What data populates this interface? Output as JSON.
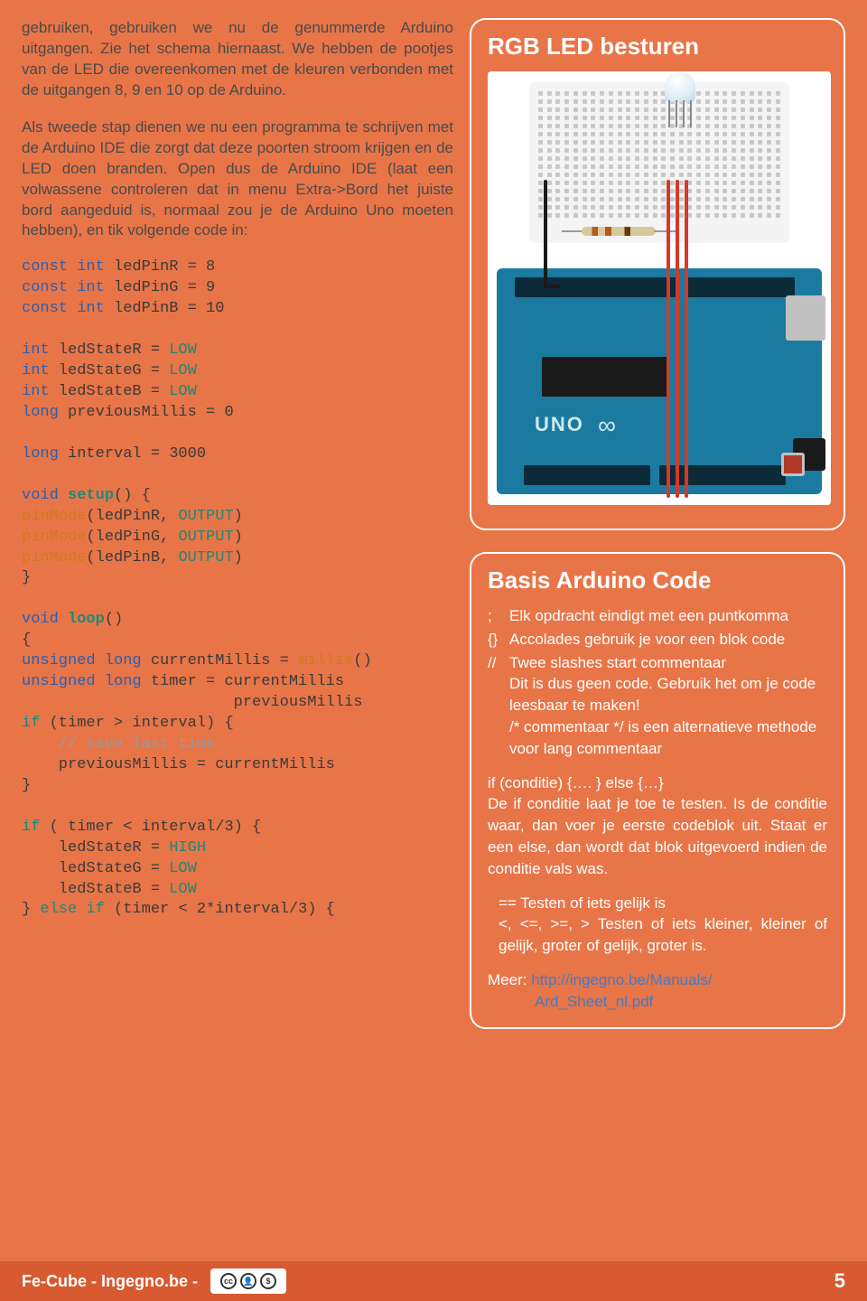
{
  "para1": "gebruiken, gebruiken we nu de genummerde Arduino uitgangen. Zie het schema hiernaast. We hebben de pootjes van de LED die overeenkomen met de kleuren verbonden met de uitgangen 8, 9 en 10 op de Arduino.",
  "para2": "Als tweede stap dienen we nu een programma te schrijven met de Arduino IDE die zorgt dat deze poorten stroom krijgen en de LED doen branden. Open dus de Arduino IDE (laat een volwassene controleren dat in menu Extra->Bord het juiste bord aangeduid is, normaal zou je de Arduino Uno moeten hebben), en tik volgende code in:",
  "code": {
    "c1a": "const int",
    "c1b": " ledPinR =  8",
    "c2a": "const int",
    "c2b": " ledPinG =  9",
    "c3a": "const int",
    "c3b": " ledPinB = 10",
    "c4a": "int",
    "c4b": " ledStateR = ",
    "c4c": "LOW",
    "c5a": "int",
    "c5b": " ledStateG = ",
    "c5c": "LOW",
    "c6a": "int",
    "c6b": " ledStateB = ",
    "c6c": "LOW",
    "c7a": "long",
    "c7b": " previousMillis = 0",
    "c8a": "long",
    "c8b": " interval = 3000",
    "c9a": "void ",
    "c9b": "setup",
    "c9c": "() {",
    "c10a": "  pinMode",
    "c10b": "(ledPinR, ",
    "c10c": "OUTPUT",
    "c10d": ")",
    "c11a": "  pinMode",
    "c11b": "(ledPinG, ",
    "c11c": "OUTPUT",
    "c11d": ")",
    "c12a": "  pinMode",
    "c12b": "(ledPinB, ",
    "c12c": "OUTPUT",
    "c12d": ")",
    "c13": "}",
    "c14a": "void ",
    "c14b": "loop",
    "c14c": "()",
    "c15": "{",
    "c16a": "  unsigned long ",
    "c16b": "currentMillis = ",
    "c16c": "millis",
    "c16d": "()",
    "c17a": "  unsigned long ",
    "c17b": "timer = currentMillis",
    "c17c": "                       previousMillis",
    "c18a": "  if ",
    "c18b": "(timer > interval) {",
    "c19": "    // save last time",
    "c20": "    previousMillis = currentMillis",
    "c21": "  }",
    "c22a": "  if ",
    "c22b": "( timer < interval/3) {",
    "c23a": "    ledStateR = ",
    "c23b": "HIGH",
    "c24a": "    ledStateG = ",
    "c24b": "LOW",
    "c25a": "    ledStateB = ",
    "c25b": "LOW",
    "c26a": "  } ",
    "c26b": "else if ",
    "c26c": "(timer < 2*interval/3) {"
  },
  "panel1": {
    "title": "RGB LED besturen",
    "uno": "UNO"
  },
  "panel2": {
    "title": "Basis Arduino Code",
    "l1a": ";",
    "l1b": "Elk opdracht eindigt met een puntkomma",
    "l2a": "{}",
    "l2b": "Accolades gebruik je voor een blok code",
    "l3a": "//",
    "l3b": "Twee slashes start commentaar",
    "l3c": "Dit is dus geen code. Gebruik het om je code leesbaar te maken!",
    "l3d": "/* commentaar */ is een alternatieve methode voor lang commentaar",
    "l4": "if (conditie) {…. } else {…}",
    "l4b": "De if conditie laat je toe te testen. Is de conditie waar, dan voer je eerste codeblok uit. Staat er een else, dan wordt dat blok uitgevoerd indien de conditie vals was.",
    "l5a": "== Testen of iets gelijk is",
    "l5b": "<, <=, >=, >  Testen of iets kleiner, kleiner of gelijk, groter of gelijk, groter is.",
    "l6a": "Meer: ",
    "l6b": "http://ingegno.be/Manuals/",
    "l6c": "Ard_Sheet_nl.pdf"
  },
  "footer": {
    "left": "Fe-Cube - Ingegno.be -",
    "cc": "cc",
    "by": "BY NC",
    "page": "5"
  }
}
